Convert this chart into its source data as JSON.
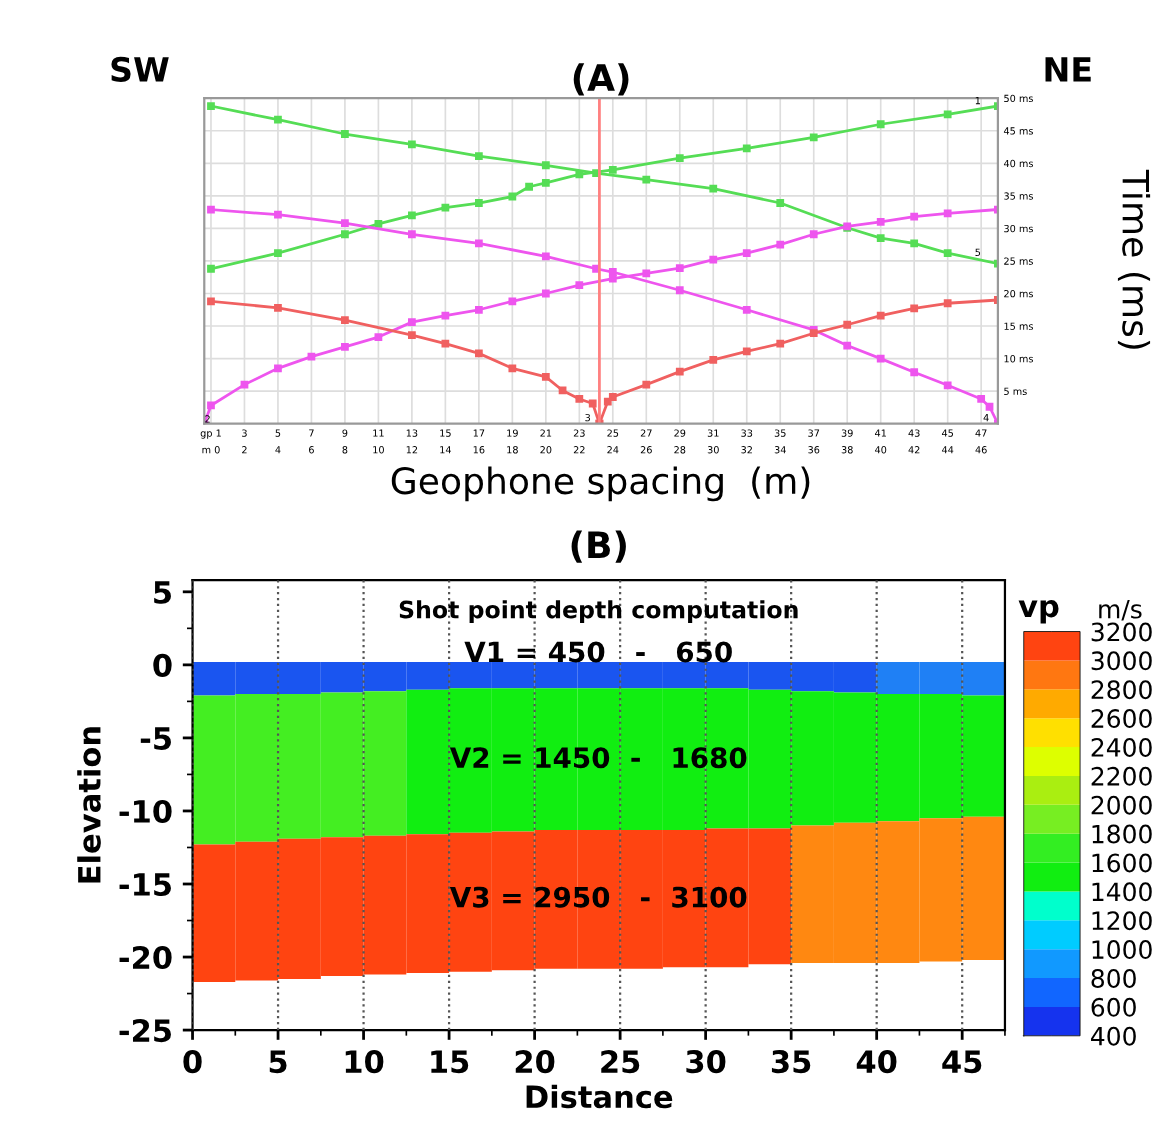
{
  "chart_data": [
    {
      "type": "line",
      "title": "(A)",
      "xlabel": "Geophone spacing  (m)",
      "ylabel": "Time (ms)",
      "annotations": [
        "SW",
        "NE",
        {
          "text": "1",
          "x": 46.8,
          "y": 49.5
        },
        {
          "text": "2",
          "x": 0.8,
          "y": 0.6
        },
        {
          "text": "3",
          "x": 23.5,
          "y": 0.8
        },
        {
          "text": "4",
          "x": 47.3,
          "y": 0.8
        },
        {
          "text": "5",
          "x": 46.8,
          "y": 26.2
        }
      ],
      "xlim": [
        0.6,
        48
      ],
      "ylim": [
        0,
        50
      ],
      "xticks": [
        {
          "value": 1,
          "label": "gp 1"
        },
        3,
        5,
        7,
        9,
        11,
        13,
        15,
        17,
        19,
        21,
        23,
        25,
        27,
        29,
        31,
        33,
        35,
        37,
        39,
        41,
        43,
        45,
        47
      ],
      "x2lim": [
        -0.4,
        47
      ],
      "x2ticks": [
        {
          "value": 0,
          "label": "m 0"
        },
        2,
        4,
        6,
        8,
        10,
        12,
        14,
        16,
        18,
        20,
        22,
        24,
        26,
        28,
        30,
        32,
        34,
        36,
        38,
        40,
        42,
        44,
        46
      ],
      "yticks": [
        {
          "value": 5,
          "label": "5 ms"
        },
        {
          "value": 10,
          "label": "10 ms"
        },
        {
          "value": 15,
          "label": "15 ms"
        },
        {
          "value": 20,
          "label": "20 ms"
        },
        {
          "value": 25,
          "label": "25 ms"
        },
        {
          "value": 30,
          "label": "30 ms"
        },
        {
          "value": 35,
          "label": "35 ms"
        },
        {
          "value": 40,
          "label": "40 ms"
        },
        {
          "value": 45,
          "label": "45 ms"
        },
        {
          "value": 50,
          "label": "50 ms"
        }
      ],
      "grid": true,
      "marker": "square",
      "line_style": "solid",
      "ref_lines": [
        {
          "axis": "x",
          "value": 24.2,
          "color": "#ff8080"
        }
      ],
      "series": [
        {
          "color": "#55dd55",
          "x": [
            1,
            5,
            9,
            13,
            17,
            21,
            24,
            27,
            31,
            35,
            39,
            41,
            43,
            45,
            48
          ],
          "values": [
            48.8,
            46.7,
            44.5,
            42.9,
            41.1,
            39.7,
            38.5,
            37.5,
            36.1,
            33.9,
            30.1,
            28.5,
            27.7,
            26.2,
            24.6
          ]
        },
        {
          "color": "#55dd55",
          "x": [
            1,
            5,
            9,
            11,
            13,
            15,
            17,
            19,
            20,
            21,
            23,
            25,
            29,
            33,
            37,
            41,
            45,
            48
          ],
          "values": [
            23.8,
            26.2,
            29.1,
            30.7,
            32.0,
            33.2,
            33.9,
            34.9,
            36.4,
            37.0,
            38.3,
            39.0,
            40.8,
            42.3,
            44.0,
            46.0,
            47.5,
            48.8
          ]
        },
        {
          "color": "#ee55ee",
          "x": [
            1,
            5,
            9,
            13,
            17,
            21,
            24,
            25,
            29,
            33,
            37,
            39,
            41,
            43,
            45,
            47,
            47.5,
            48
          ],
          "values": [
            32.9,
            32.1,
            30.8,
            29.1,
            27.7,
            25.7,
            23.8,
            23.3,
            20.5,
            17.5,
            14.4,
            12.0,
            10.0,
            7.9,
            5.9,
            3.8,
            2.6,
            0
          ]
        },
        {
          "color": "#ee55ee",
          "x": [
            0.6,
            1,
            3,
            5,
            7,
            9,
            11,
            13,
            15,
            17,
            19,
            21,
            23,
            25,
            27,
            29,
            31,
            33,
            35,
            37,
            39,
            41,
            43,
            45,
            48
          ],
          "values": [
            0,
            2.8,
            6.0,
            8.5,
            10.3,
            11.8,
            13.3,
            15.6,
            16.6,
            17.5,
            18.8,
            20.0,
            21.3,
            22.3,
            23.1,
            23.9,
            25.2,
            26.2,
            27.5,
            29.1,
            30.3,
            31.0,
            31.8,
            32.3,
            32.9
          ]
        },
        {
          "color": "#f06060",
          "x": [
            1,
            5,
            9,
            13,
            15,
            17,
            19,
            21,
            22,
            23,
            23.8,
            24.2
          ],
          "values": [
            18.8,
            17.8,
            15.9,
            13.6,
            12.3,
            10.8,
            8.5,
            7.2,
            5.1,
            3.8,
            3.1,
            0
          ]
        },
        {
          "color": "#f06060",
          "x": [
            24.2,
            24.7,
            25,
            27,
            29,
            31,
            33,
            35,
            37,
            39,
            41,
            43,
            45,
            48
          ],
          "values": [
            0,
            3.4,
            4.1,
            6.0,
            8.0,
            9.8,
            11.1,
            12.3,
            13.9,
            15.2,
            16.6,
            17.7,
            18.5,
            19.0
          ]
        }
      ]
    },
    {
      "type": "bar",
      "title": "(B)",
      "xlabel": "Distance",
      "ylabel": "Elevation",
      "clabel": "vp",
      "annotations": [
        "Shot point depth computation",
        "V1 = 450   -   650",
        "V2 = 1450  -   1680",
        "V3 = 2950   -  3100",
        "m/s"
      ],
      "xlim": [
        0,
        47.5
      ],
      "ylim": [
        -25,
        5.8
      ],
      "xticks": [
        0,
        5,
        10,
        15,
        20,
        25,
        30,
        35,
        40,
        45
      ],
      "yticks": [
        -25,
        -20,
        -15,
        -10,
        -5,
        0,
        5
      ],
      "clim": [
        400,
        3200
      ],
      "cticks": [
        400,
        600,
        800,
        1000,
        1200,
        1400,
        1600,
        1800,
        2000,
        2200,
        2400,
        2600,
        2800,
        3000,
        3200
      ],
      "grid": "x",
      "x": [
        1.25,
        3.75,
        6.25,
        8.75,
        11.25,
        13.75,
        16.25,
        18.75,
        21.25,
        23.75,
        26.25,
        28.75,
        31.25,
        33.75,
        36.25,
        38.75,
        41.25,
        43.75,
        46.25
      ],
      "series": [
        {
          "base": [
            -2.1,
            -2.0,
            -2.0,
            -1.9,
            -1.8,
            -1.7,
            -1.6,
            -1.6,
            -1.6,
            -1.6,
            -1.6,
            -1.6,
            -1.6,
            -1.7,
            -1.8,
            -1.9,
            -2.0,
            -2.0,
            -2.1
          ],
          "values": [
            2.3,
            2.2,
            2.2,
            2.1,
            2.0,
            1.9,
            1.8,
            1.8,
            1.8,
            1.8,
            1.8,
            1.8,
            1.8,
            1.9,
            2.0,
            2.1,
            2.2,
            2.2,
            2.3
          ],
          "colors": [
            "#1a55f0",
            "#1a55f0",
            "#1a55f0",
            "#1a55f0",
            "#1a55f0",
            "#1a55f0",
            "#1a55f0",
            "#1a55f0",
            "#1a55f0",
            "#1a55f0",
            "#1a55f0",
            "#1a55f0",
            "#1a55f0",
            "#1a55f0",
            "#1a55f0",
            "#1a55f0",
            "#1f80f5",
            "#1f80f5",
            "#1f80f5"
          ]
        },
        {
          "base": [
            -12.3,
            -12.1,
            -11.9,
            -11.8,
            -11.7,
            -11.6,
            -11.5,
            -11.4,
            -11.3,
            -11.3,
            -11.3,
            -11.3,
            -11.2,
            -11.2,
            -11.0,
            -10.8,
            -10.7,
            -10.5,
            -10.4
          ],
          "values": [
            10.2,
            10.1,
            9.9,
            9.9,
            9.9,
            9.9,
            9.9,
            9.8,
            9.7,
            9.7,
            9.7,
            9.7,
            9.6,
            9.5,
            9.2,
            8.9,
            8.7,
            8.5,
            8.3
          ],
          "colors": [
            "#44ee22",
            "#44ee22",
            "#44ee22",
            "#44ee22",
            "#44ee22",
            "#11ee11",
            "#11ee11",
            "#11ee11",
            "#11ee11",
            "#11ee11",
            "#11ee11",
            "#11ee11",
            "#11ee11",
            "#11ee11",
            "#11ee11",
            "#11ee11",
            "#11ee11",
            "#11ee11",
            "#11ee11"
          ]
        },
        {
          "base": [
            -21.7,
            -21.6,
            -21.5,
            -21.3,
            -21.2,
            -21.1,
            -21.0,
            -20.9,
            -20.8,
            -20.8,
            -20.8,
            -20.7,
            -20.7,
            -20.5,
            -20.4,
            -20.4,
            -20.4,
            -20.3,
            -20.2
          ],
          "values": [
            9.4,
            9.5,
            9.6,
            9.5,
            9.5,
            9.5,
            9.5,
            9.5,
            9.5,
            9.5,
            9.5,
            9.4,
            9.5,
            9.3,
            9.4,
            9.6,
            9.7,
            9.8,
            9.8
          ],
          "colors": [
            "#ff4411",
            "#ff4411",
            "#ff4411",
            "#ff4411",
            "#ff4411",
            "#ff4411",
            "#ff4411",
            "#ff4411",
            "#ff4411",
            "#ff4411",
            "#ff4411",
            "#ff4411",
            "#ff4411",
            "#ff4411",
            "#ff8811",
            "#ff8811",
            "#ff8811",
            "#ff8811",
            "#ff8811"
          ]
        }
      ]
    }
  ]
}
